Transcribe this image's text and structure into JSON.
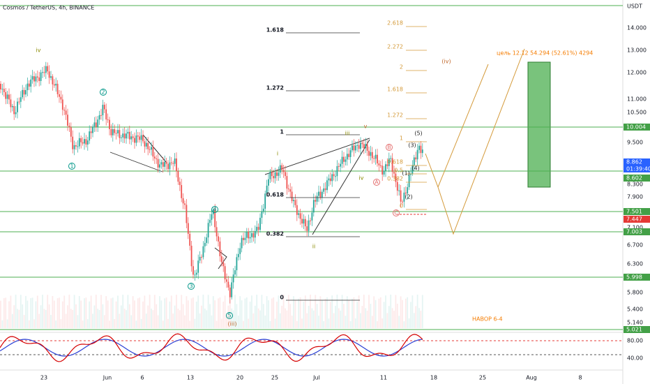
{
  "header": {
    "symbol": "Cosmos / TetherUS, 4h, BINANCE",
    "currency": "USDT"
  },
  "price_axis": [
    "14.000",
    "13.000",
    "12.000",
    "11.000",
    "10.500",
    "9.500",
    "8.300",
    "7.900",
    "7.100",
    "6.700",
    "6.300",
    "5.800",
    "5.400",
    "5.140"
  ],
  "price_flags": [
    "10.004",
    "8.862",
    "01:39:40",
    "8.602",
    "7.501",
    "7.447",
    "7.003",
    "5.998",
    "5.021"
  ],
  "date_axis": [
    "23",
    "Jun",
    "6",
    "13",
    "20",
    "25",
    "Jul",
    "11",
    "18",
    "25",
    "Aug",
    "8"
  ],
  "oscillator_axis": [
    "80.00",
    "40.00"
  ],
  "fib_left": [
    "1.618",
    "1.272",
    "1",
    "0.618",
    "0.382",
    "0"
  ],
  "fib_right": [
    "2.618",
    "2.272",
    "2",
    "1.618",
    "1.272",
    "1",
    "0.618",
    "0.5",
    "0.382",
    "0"
  ],
  "waves": [
    "iv",
    "2",
    "1",
    "4",
    "3",
    "5",
    "(iii)",
    "i",
    "ii",
    "iii",
    "v",
    "iv",
    "A",
    "B",
    "C",
    "(iv)",
    "(1)",
    "(2)",
    "(3)",
    "(4)",
    "(5)"
  ],
  "target_note": "цель 12.12 54.294 (52.61%) 4294",
  "note": "HABOP 6-4"
}
